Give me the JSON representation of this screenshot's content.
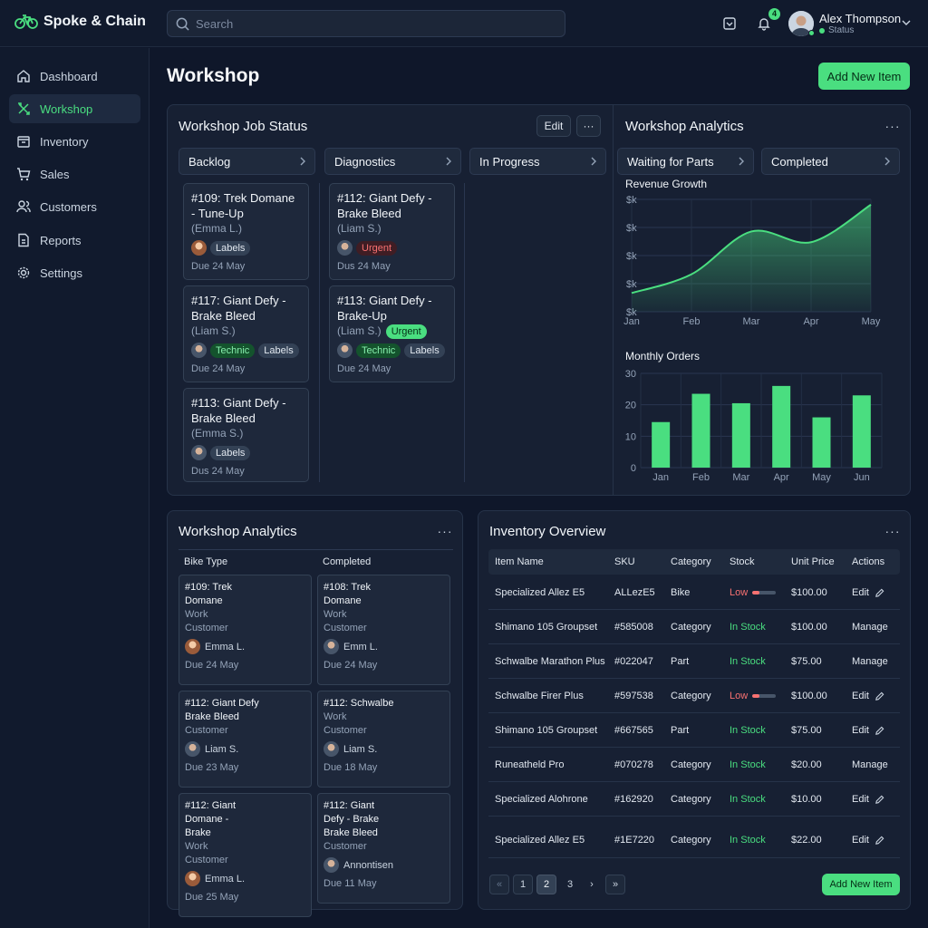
{
  "app": {
    "name": "Spoke & Chain"
  },
  "search": {
    "placeholder": "Search"
  },
  "notifications": {
    "count": "4"
  },
  "user": {
    "name": "Alex Thompson",
    "status": "Status"
  },
  "nav": [
    {
      "label": "Dashboard",
      "icon": "home-icon"
    },
    {
      "label": "Workshop",
      "icon": "wrench-icon"
    },
    {
      "label": "Inventory",
      "icon": "box-icon"
    },
    {
      "label": "Sales",
      "icon": "cart-icon"
    },
    {
      "label": "Customers",
      "icon": "users-icon"
    },
    {
      "label": "Reports",
      "icon": "document-icon"
    },
    {
      "label": "Settings",
      "icon": "gear-icon"
    }
  ],
  "page": {
    "title": "Workshop",
    "add_button": "Add New Item"
  },
  "job_status": {
    "title": "Workshop Job Status",
    "edit_label": "Edit",
    "columns": [
      "Backlog",
      "Diagnostics",
      "In Progress",
      "Waiting for Parts",
      "Completed"
    ],
    "backlog": [
      {
        "title": "#109: Trek Domane - Tune-Up",
        "customer": "(Emma L.)",
        "tags": [
          "Labels"
        ],
        "due": "Due 24 May"
      },
      {
        "title": "#117: Giant Defy - Brake Bleed",
        "customer": "(Liam S.)",
        "tags": [
          "Technic",
          "Labels"
        ],
        "due": "Due 24 May"
      },
      {
        "title": "#113: Giant Defy - Brake Bleed",
        "customer": "(Emma S.)",
        "tags": [
          "Labels"
        ],
        "due": "Dus 24 May"
      }
    ],
    "diagnostics": [
      {
        "title": "#112: Giant Defy - Brake Bleed",
        "customer": "(Liam S.)",
        "tags": [
          "Urgent"
        ],
        "due": "Dus 24 May"
      },
      {
        "title": "#113: Giant Defy - Brake-Up",
        "customer": "(Liam S.)",
        "inline_tag": "Urgent",
        "tags": [
          "Technic",
          "Labels"
        ],
        "due": "Due 24 May"
      }
    ]
  },
  "analytics": {
    "title": "Workshop Analytics",
    "revenue_title": "Revenue Growth",
    "orders_title": "Monthly Orders"
  },
  "chart_data": [
    {
      "type": "area",
      "title": "Revenue Growth",
      "x": [
        "Jan",
        "Feb",
        "Mar",
        "Apr",
        "May"
      ],
      "y_tick_labels": [
        "$k",
        "$k",
        "$k",
        "$k",
        "$k"
      ],
      "values": [
        0.7,
        1.4,
        3.0,
        2.6,
        4.0
      ],
      "ylim": [
        0,
        4.2
      ],
      "grid": true,
      "color": "#4ade80"
    },
    {
      "type": "bar",
      "title": "Monthly Orders",
      "categories": [
        "Jan",
        "Feb",
        "Mar",
        "Apr",
        "May",
        "Jun"
      ],
      "values": [
        14.5,
        23.5,
        20.5,
        26,
        16,
        23
      ],
      "yticks": [
        0,
        10,
        20,
        30
      ],
      "ylim": [
        0,
        30
      ],
      "grid": true,
      "color": "#4ade80"
    }
  ],
  "workshop_table": {
    "title": "Workshop Analytics",
    "headers": [
      "Bike Type",
      "Completed"
    ],
    "left": [
      {
        "lines": [
          "#109: Trek",
          "Domane"
        ],
        "sub": [
          "Work",
          "Customer"
        ],
        "person": "Emma L.",
        "gender": "f",
        "due": "Due 24 May"
      },
      {
        "lines": [
          "#112: Giant Defy",
          "Brake Bleed"
        ],
        "sub": [
          "Customer"
        ],
        "person": "Liam S.",
        "gender": "m",
        "due": "Due 23 May"
      },
      {
        "lines": [
          "#112: Giant",
          "Domane -",
          "Brake"
        ],
        "sub": [
          "Work",
          "Customer"
        ],
        "person": "Emma L.",
        "gender": "f",
        "due": "Due 25 May"
      }
    ],
    "right": [
      {
        "lines": [
          "#108: Trek",
          "Domane"
        ],
        "sub": [
          "Work",
          "Customer"
        ],
        "person": "Emm L.",
        "gender": "m",
        "due": "Due 24 May"
      },
      {
        "lines": [
          "#112: Schwalbe"
        ],
        "sub": [
          "Work",
          "Customer"
        ],
        "person": "Liam S.",
        "gender": "m",
        "due": "Due 18 May"
      },
      {
        "lines": [
          "#112: Giant",
          "Defy - Brake",
          "Brake Bleed"
        ],
        "sub": [
          "Customer"
        ],
        "person": "Annontisen",
        "gender": "m",
        "due": "Due 11 May"
      }
    ]
  },
  "inventory": {
    "title": "Inventory Overview",
    "headers": [
      "Item Name",
      "SKU",
      "Category",
      "Stock",
      "Unit Price",
      "Actions"
    ],
    "rows": [
      {
        "name": "Specialized Allez E5",
        "sku": "ALLezE5",
        "category": "Bike",
        "stock": "Low",
        "level": 0.3,
        "price": "$100.00",
        "action": "Edit",
        "edit_icon": true
      },
      {
        "name": "Shimano 105 Groupset",
        "sku": "#585008",
        "category": "Category",
        "stock": "In Stock",
        "price": "$100.00",
        "action": "Manage",
        "edit_icon": false
      },
      {
        "name": "Schwalbe Marathon Plus",
        "sku": "#022047",
        "category": "Part",
        "stock": "In Stock",
        "price": "$75.00",
        "action": "Manage",
        "edit_icon": false
      },
      {
        "name": "Schwalbe Firer Plus",
        "sku": "#597538",
        "category": "Category",
        "stock": "Low",
        "level": 0.3,
        "price": "$100.00",
        "action": "Edit",
        "edit_icon": true
      },
      {
        "name": "Shimano 105 Groupset",
        "sku": "#667565",
        "category": "Part",
        "stock": "In Stock",
        "price": "$75.00",
        "action": "Edit",
        "edit_icon": true
      },
      {
        "name": "Runeatheld Pro",
        "sku": "#070278",
        "category": "Category",
        "stock": "In Stock",
        "price": "$20.00",
        "action": "Manage",
        "edit_icon": false
      },
      {
        "name": "Specialized Alohrone",
        "sku": "#162920",
        "category": "Category",
        "stock": "In Stock",
        "price": "$10.00",
        "action": "Edit",
        "edit_icon": true
      },
      {
        "name": "Specialized Allez E5",
        "sku": "#1E7220",
        "category": "Category",
        "stock": "In Stock",
        "price": "$22.00",
        "action": "Edit",
        "edit_icon": true
      }
    ],
    "pages": [
      "1",
      "2",
      "3"
    ],
    "current_page": "2",
    "add_button": "Add New Item"
  }
}
